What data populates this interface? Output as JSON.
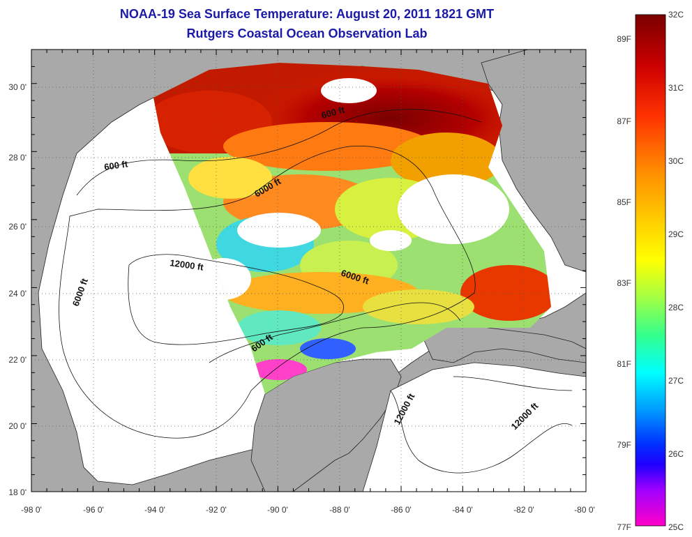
{
  "header": {
    "title": "NOAA-19 Sea Surface Temperature:  August 20, 2011 1821 GMT",
    "subtitle": "Rutgers Coastal Ocean Observation Lab"
  },
  "map": {
    "lon_ticks": [
      "-98 0'",
      "-96 0'",
      "-94 0'",
      "-92 0'",
      "-90 0'",
      "-88 0'",
      "-86 0'",
      "-84 0'",
      "-82 0'",
      "-80 0'"
    ],
    "lat_ticks": [
      "18 0'",
      "20 0'",
      "22 0'",
      "24 0'",
      "26 0'",
      "28 0'",
      "30 0'"
    ],
    "lon_range": [
      -98,
      -80
    ],
    "lat_range": [
      18,
      31
    ],
    "contour_labels": [
      "600 ft",
      "600 ft",
      "6000 ft",
      "12000 ft",
      "6000 ft",
      "6000 ft",
      "600 ft",
      "12000 ft",
      "12000 ft"
    ],
    "colors": {
      "land": "#a9a9a9",
      "ocean_no_data": "#ffffff",
      "hot": "#8b0000",
      "warm": "#ff6a00",
      "mid": "#ffe600",
      "cool": "#00c8ff",
      "cold": "#ff00c8"
    }
  },
  "colorbar": {
    "celsius_labels": [
      "32C",
      "31C",
      "30C",
      "29C",
      "28C",
      "27C",
      "26C",
      "25C"
    ],
    "fahrenheit_labels": [
      "89F",
      "87F",
      "85F",
      "83F",
      "81F",
      "79F",
      "77F"
    ],
    "range_c": [
      25,
      32
    ]
  }
}
